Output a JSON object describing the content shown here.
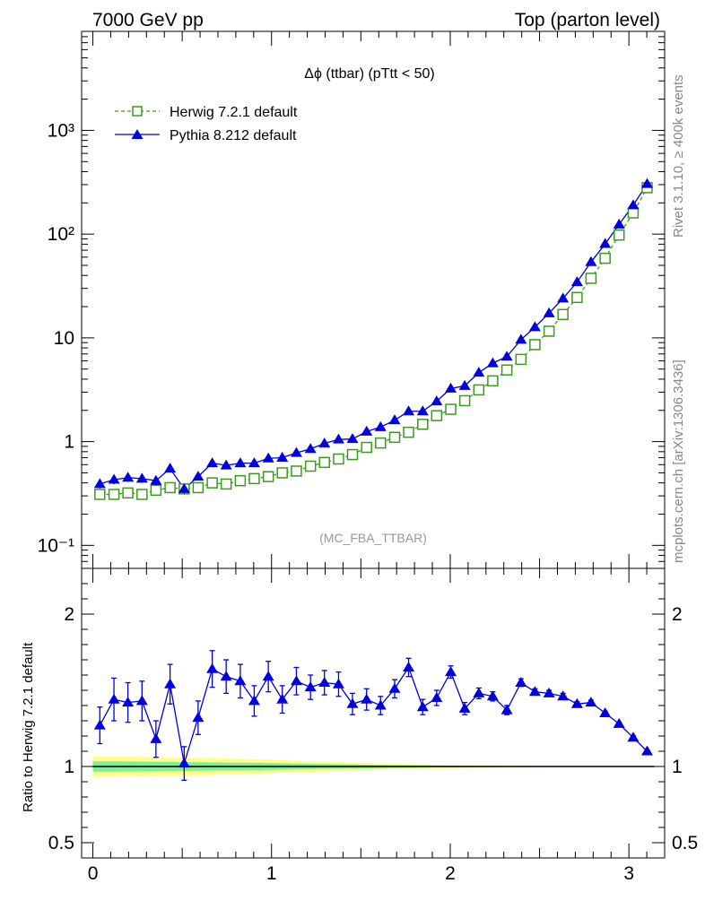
{
  "header": {
    "left": "7000 GeV pp",
    "right": "Top (parton level)"
  },
  "side_labels": {
    "rivet": "Rivet 3.1.10, ≥ 400k events",
    "mcplots": "mcplots.cern.ch [arXiv:1306.3436]"
  },
  "colors": {
    "herwig": "#3c9a1e",
    "pythia": "#0000dd",
    "band_inner": "#80ee99",
    "band_outer": "#ffff88"
  },
  "chart_data": [
    {
      "type": "line",
      "title": "Δϕ (ttbar) (pTtt < 50)",
      "watermark": "(MC_FBA_TTBAR)",
      "yscale": "log",
      "xlim": [
        -0.063,
        3.2
      ],
      "ylim": [
        0.06,
        9000
      ],
      "y_ticks": [
        {
          "value": 0.1,
          "label": "10⁻¹"
        },
        {
          "value": 1,
          "label": "1"
        },
        {
          "value": 10,
          "label": "10"
        },
        {
          "value": 100,
          "label": "10²"
        },
        {
          "value": 1000,
          "label": "10³"
        }
      ],
      "legend_position": "top-left",
      "x": [
        0.039,
        0.118,
        0.196,
        0.275,
        0.353,
        0.432,
        0.511,
        0.589,
        0.668,
        0.746,
        0.825,
        0.903,
        0.982,
        1.06,
        1.139,
        1.218,
        1.296,
        1.375,
        1.453,
        1.532,
        1.61,
        1.689,
        1.767,
        1.846,
        1.924,
        2.003,
        2.081,
        2.16,
        2.238,
        2.317,
        2.396,
        2.474,
        2.553,
        2.631,
        2.71,
        2.788,
        2.867,
        2.945,
        3.024,
        3.102
      ],
      "series": [
        {
          "name": "Herwig 7.2.1 default",
          "marker": "open-square",
          "linestyle": "dashed",
          "values": [
            0.31,
            0.31,
            0.32,
            0.31,
            0.34,
            0.36,
            0.35,
            0.36,
            0.4,
            0.39,
            0.42,
            0.44,
            0.46,
            0.5,
            0.52,
            0.58,
            0.63,
            0.68,
            0.75,
            0.88,
            0.97,
            1.1,
            1.23,
            1.47,
            1.78,
            2.05,
            2.48,
            3.15,
            3.85,
            4.9,
            6.2,
            8.6,
            11.6,
            16.8,
            24.5,
            37.5,
            58.5,
            98.0,
            160,
            280
          ]
        },
        {
          "name": "Pythia 8.212 default",
          "marker": "filled-triangle",
          "linestyle": "solid",
          "values": [
            0.39,
            0.43,
            0.45,
            0.44,
            0.42,
            0.55,
            0.35,
            0.46,
            0.62,
            0.59,
            0.62,
            0.62,
            0.69,
            0.7,
            0.78,
            0.85,
            0.96,
            1.05,
            1.06,
            1.25,
            1.38,
            1.61,
            1.96,
            1.96,
            2.45,
            3.25,
            3.45,
            4.62,
            5.7,
            6.6,
            9.6,
            12.7,
            17.3,
            24.0,
            34.5,
            53.8,
            80.5,
            124,
            190,
            305
          ]
        }
      ]
    },
    {
      "type": "line",
      "ylabel": "Ratio to Herwig 7.2.1 default",
      "xlim": [
        -0.063,
        3.2
      ],
      "ylim": [
        0.4,
        2.3
      ],
      "x_ticks": [
        0,
        1,
        2,
        3
      ],
      "y_ticks": [
        0.5,
        1,
        2
      ],
      "reference_line": 1,
      "series": [
        {
          "name": "Pythia 8.212 default",
          "values": [
            1.27,
            1.44,
            1.42,
            1.43,
            1.18,
            1.54,
            1.02,
            1.32,
            1.64,
            1.59,
            1.56,
            1.43,
            1.59,
            1.44,
            1.56,
            1.52,
            1.55,
            1.54,
            1.41,
            1.44,
            1.4,
            1.51,
            1.65,
            1.39,
            1.45,
            1.62,
            1.38,
            1.48,
            1.46,
            1.37,
            1.55,
            1.49,
            1.48,
            1.46,
            1.41,
            1.42,
            1.35,
            1.28,
            1.19,
            1.1
          ],
          "errors": [
            0.12,
            0.14,
            0.13,
            0.13,
            0.12,
            0.13,
            0.11,
            0.11,
            0.12,
            0.11,
            0.11,
            0.1,
            0.1,
            0.09,
            0.09,
            0.08,
            0.08,
            0.08,
            0.07,
            0.07,
            0.06,
            0.06,
            0.06,
            0.05,
            0.05,
            0.04,
            0.04,
            0.035,
            0.03,
            0.03,
            0.025,
            0.02,
            0.02,
            0.02,
            0.015,
            0.015,
            0.012,
            0.01,
            0.01,
            0.008
          ]
        }
      ],
      "band_outer": [
        0.067,
        0.066,
        0.064,
        0.062,
        0.061,
        0.06,
        0.058,
        0.057,
        0.055,
        0.053,
        0.05,
        0.047,
        0.044,
        0.041,
        0.038,
        0.035,
        0.032,
        0.029,
        0.026,
        0.023,
        0.02,
        0.018,
        0.016,
        0.014,
        0.012,
        0.01,
        0.009,
        0.008,
        0.007,
        0.006,
        0.005,
        0.004,
        0.004,
        0.003,
        0.003,
        0.002,
        0.002,
        0.002,
        0.001,
        0.001
      ],
      "band_inner": [
        0.034,
        0.034,
        0.033,
        0.032,
        0.031,
        0.03,
        0.029,
        0.028,
        0.027,
        0.026,
        0.025,
        0.024,
        0.022,
        0.021,
        0.019,
        0.018,
        0.016,
        0.015,
        0.013,
        0.012,
        0.01,
        0.009,
        0.008,
        0.007,
        0.006,
        0.005,
        0.005,
        0.004,
        0.004,
        0.003,
        0.003,
        0.002,
        0.002,
        0.002,
        0.001,
        0.001,
        0.001,
        0.001,
        0.001,
        0.001
      ]
    }
  ]
}
